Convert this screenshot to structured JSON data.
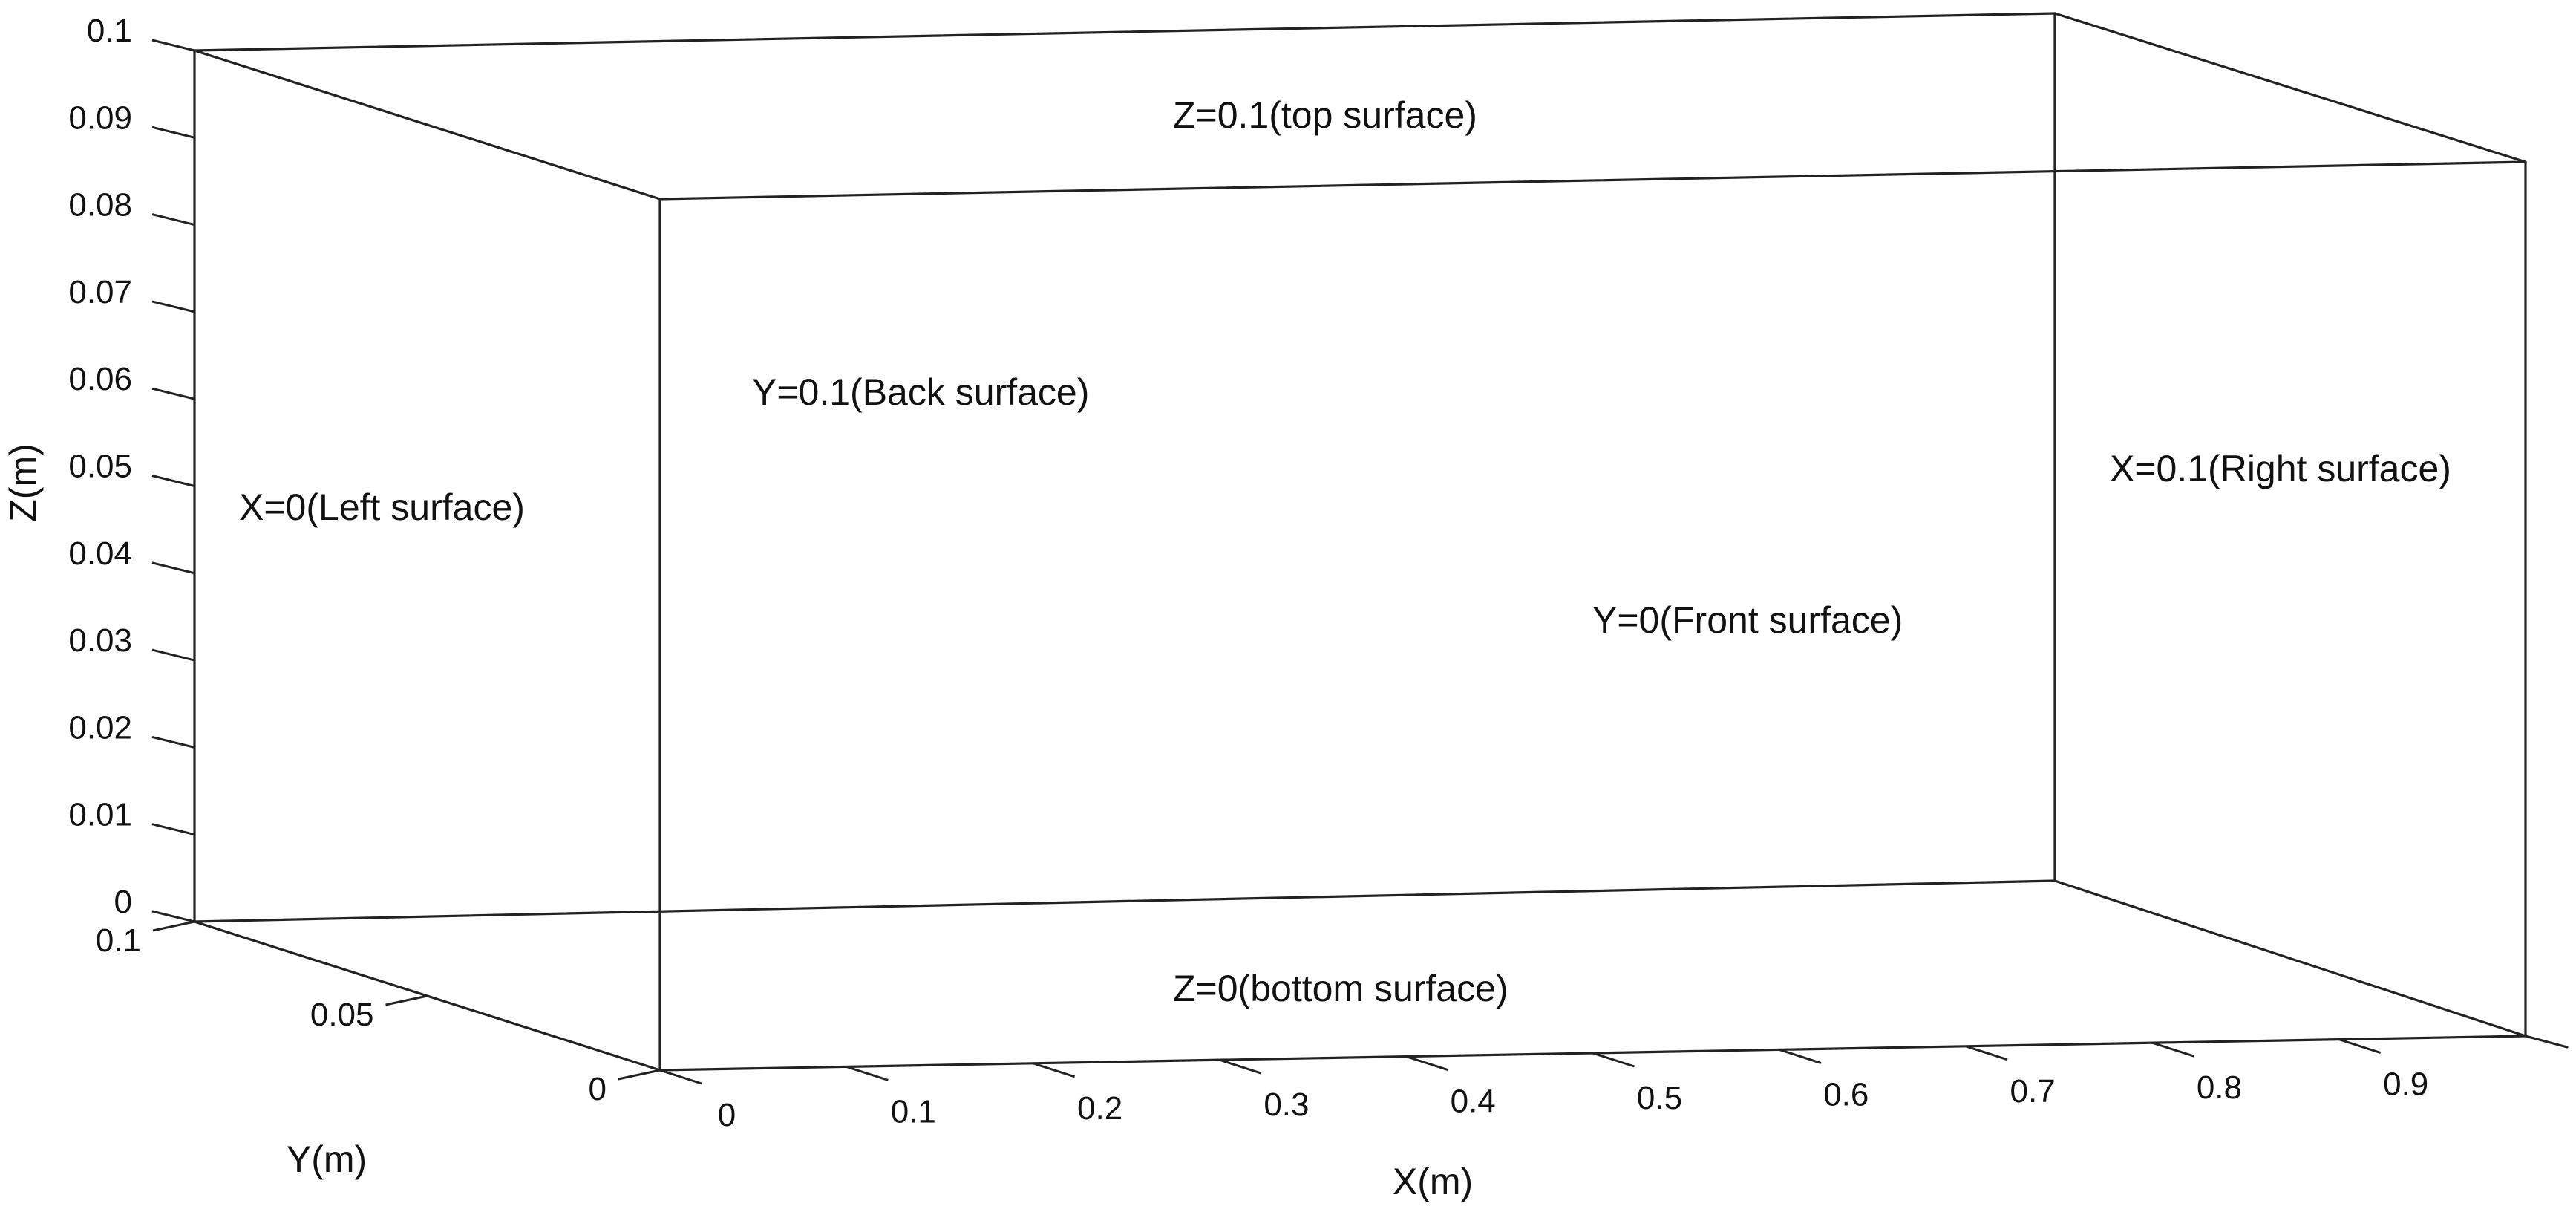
{
  "axes": {
    "x": {
      "title": "X(m)",
      "ticks": [
        "0",
        "0.1",
        "0.2",
        "0.3",
        "0.4",
        "0.5",
        "0.6",
        "0.7",
        "0.8",
        "0.9"
      ]
    },
    "y": {
      "title": "Y(m)",
      "ticks": [
        "0",
        "0.05",
        "0.1"
      ]
    },
    "z": {
      "title": "Z(m)",
      "ticks": [
        "0",
        "0.01",
        "0.02",
        "0.03",
        "0.04",
        "0.05",
        "0.06",
        "0.07",
        "0.08",
        "0.09",
        "0.1"
      ]
    }
  },
  "surfaces": {
    "top": "Z=0.1(top surface)",
    "back": "Y=0.1(Back surface)",
    "left": "X=0(Left surface)",
    "right": "X=0.1(Right surface)",
    "front": "Y=0(Front surface)",
    "bottom": "Z=0(bottom surface)"
  }
}
